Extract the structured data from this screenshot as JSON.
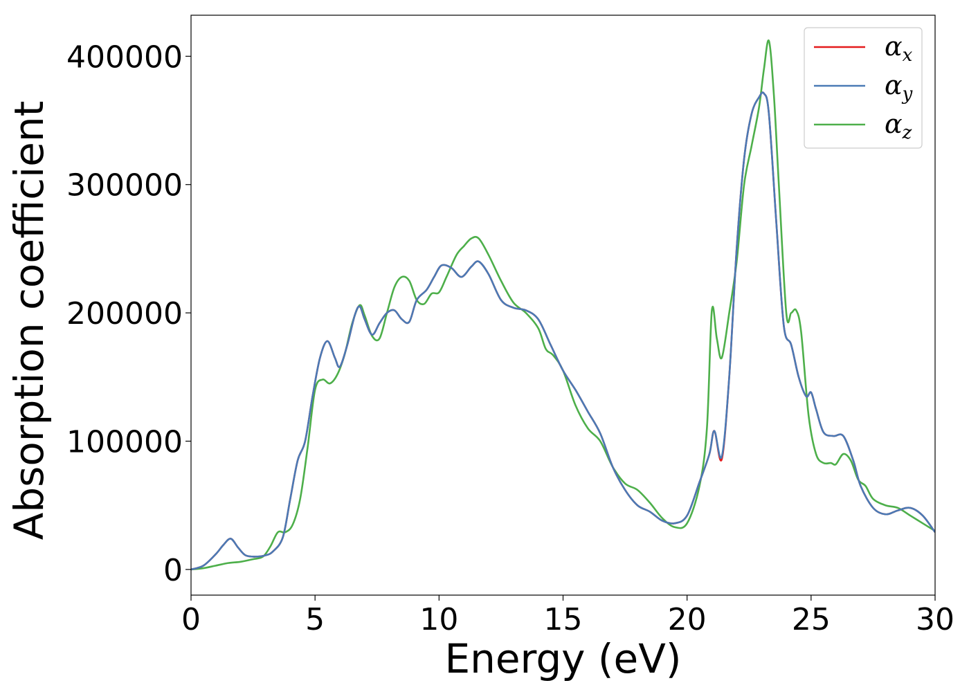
{
  "chart_data": {
    "type": "line",
    "title": "",
    "xlabel": "Energy (eV)",
    "ylabel": "Absorption coefficient",
    "xlim": [
      0,
      30
    ],
    "ylim": [
      -20000,
      432000
    ],
    "xticks": [
      0,
      5,
      10,
      15,
      20,
      25,
      30
    ],
    "xtick_labels": [
      "0",
      "5",
      "10",
      "15",
      "20",
      "25",
      "30"
    ],
    "yticks": [
      0,
      100000,
      200000,
      300000,
      400000
    ],
    "ytick_labels": [
      "0",
      "100000",
      "200000",
      "300000",
      "400000"
    ],
    "grid": false,
    "legend_position": "top-right",
    "series": [
      {
        "name": "αx",
        "label_base": "α",
        "label_sub": "x",
        "color": "#e41a1c",
        "x": [
          0,
          0.5,
          1.0,
          1.3,
          1.6,
          1.9,
          2.2,
          2.6,
          3.0,
          3.3,
          3.7,
          4.0,
          4.3,
          4.6,
          4.9,
          5.2,
          5.5,
          5.8,
          6.0,
          6.3,
          6.6,
          6.8,
          7.0,
          7.3,
          7.6,
          7.9,
          8.2,
          8.5,
          8.8,
          9.1,
          9.5,
          9.8,
          10.1,
          10.5,
          10.9,
          11.3,
          11.6,
          12.0,
          12.5,
          13.0,
          13.5,
          14.0,
          14.5,
          15.0,
          15.5,
          16.0,
          16.5,
          17.0,
          17.5,
          18.0,
          18.5,
          19.0,
          19.5,
          20.0,
          20.5,
          20.9,
          21.1,
          21.4,
          21.7,
          22.0,
          22.3,
          22.6,
          22.9,
          23.1,
          23.3,
          23.6,
          23.9,
          24.2,
          24.5,
          24.8,
          25.0,
          25.2,
          25.5,
          25.9,
          26.3,
          26.7,
          27.0,
          27.5,
          28.0,
          28.5,
          29.0,
          29.5,
          30.0
        ],
        "y": [
          0,
          3000,
          12000,
          19000,
          24000,
          17000,
          11000,
          10000,
          11000,
          14000,
          25000,
          55000,
          85000,
          100000,
          135000,
          165000,
          178000,
          165000,
          158000,
          175000,
          198000,
          205000,
          195000,
          183000,
          192000,
          200000,
          202000,
          195000,
          193000,
          210000,
          218000,
          228000,
          237000,
          235000,
          228000,
          236000,
          240000,
          230000,
          210000,
          204000,
          202000,
          195000,
          175000,
          155000,
          140000,
          123000,
          106000,
          80000,
          62000,
          50000,
          45000,
          38000,
          36000,
          42000,
          68000,
          90000,
          108000,
          86000,
          150000,
          250000,
          320000,
          355000,
          368000,
          371000,
          355000,
          270000,
          190000,
          175000,
          150000,
          135000,
          138000,
          125000,
          107000,
          104000,
          104000,
          85000,
          65000,
          48000,
          43000,
          46000,
          48000,
          42000,
          29000
        ]
      },
      {
        "name": "αy",
        "label_base": "α",
        "label_sub": "y",
        "color": "#4a7ab5",
        "x": [
          0,
          0.5,
          1.0,
          1.3,
          1.6,
          1.9,
          2.2,
          2.6,
          3.0,
          3.3,
          3.7,
          4.0,
          4.3,
          4.6,
          4.9,
          5.2,
          5.5,
          5.8,
          6.0,
          6.3,
          6.6,
          6.8,
          7.0,
          7.3,
          7.6,
          7.9,
          8.2,
          8.5,
          8.8,
          9.1,
          9.5,
          9.8,
          10.1,
          10.5,
          10.9,
          11.3,
          11.6,
          12.0,
          12.5,
          13.0,
          13.5,
          14.0,
          14.5,
          15.0,
          15.5,
          16.0,
          16.5,
          17.0,
          17.5,
          18.0,
          18.5,
          19.0,
          19.5,
          20.0,
          20.5,
          20.9,
          21.1,
          21.4,
          21.7,
          22.0,
          22.3,
          22.6,
          22.9,
          23.1,
          23.3,
          23.6,
          23.9,
          24.2,
          24.5,
          24.8,
          25.0,
          25.2,
          25.5,
          25.9,
          26.3,
          26.7,
          27.0,
          27.5,
          28.0,
          28.5,
          29.0,
          29.5,
          30.0
        ],
        "y": [
          0,
          3000,
          12000,
          19000,
          24000,
          17000,
          11000,
          10000,
          11000,
          14000,
          25000,
          55000,
          85000,
          100000,
          135000,
          165000,
          178000,
          165000,
          158000,
          175000,
          198000,
          205000,
          195000,
          183000,
          192000,
          200000,
          202000,
          195000,
          193000,
          210000,
          218000,
          228000,
          237000,
          235000,
          228000,
          236000,
          240000,
          230000,
          210000,
          204000,
          202000,
          195000,
          175000,
          155000,
          140000,
          123000,
          106000,
          80000,
          62000,
          50000,
          45000,
          38000,
          36000,
          42000,
          68000,
          90000,
          108000,
          88000,
          150000,
          250000,
          320000,
          355000,
          368000,
          371000,
          355000,
          270000,
          190000,
          175000,
          150000,
          135000,
          138000,
          125000,
          107000,
          104000,
          104000,
          85000,
          65000,
          48000,
          43000,
          46000,
          48000,
          42000,
          29000
        ]
      },
      {
        "name": "αz",
        "label_base": "α",
        "label_sub": "z",
        "color": "#4daf4a",
        "x": [
          0,
          0.5,
          1.0,
          1.5,
          2.0,
          2.5,
          2.9,
          3.2,
          3.5,
          3.8,
          4.1,
          4.4,
          4.7,
          5.0,
          5.3,
          5.6,
          5.9,
          6.2,
          6.5,
          6.8,
          7.0,
          7.3,
          7.6,
          7.9,
          8.2,
          8.5,
          8.8,
          9.1,
          9.4,
          9.7,
          10.0,
          10.3,
          10.7,
          11.0,
          11.3,
          11.6,
          12.0,
          12.5,
          13.0,
          13.5,
          14.0,
          14.3,
          14.6,
          15.0,
          15.5,
          16.0,
          16.5,
          17.0,
          17.5,
          18.0,
          18.5,
          19.0,
          19.5,
          20.0,
          20.5,
          20.8,
          21.0,
          21.2,
          21.4,
          21.7,
          22.0,
          22.3,
          22.6,
          22.9,
          23.1,
          23.3,
          23.5,
          23.7,
          24.0,
          24.2,
          24.4,
          24.6,
          24.9,
          25.2,
          25.5,
          25.8,
          26.0,
          26.3,
          26.6,
          26.9,
          27.2,
          27.5,
          28.0,
          28.5,
          29.0,
          29.5,
          30.0
        ],
        "y": [
          0,
          1000,
          3000,
          5000,
          6000,
          8000,
          10000,
          18000,
          29000,
          29000,
          35000,
          55000,
          95000,
          140000,
          148000,
          145000,
          152000,
          168000,
          192000,
          206000,
          198000,
          182000,
          180000,
          200000,
          220000,
          228000,
          225000,
          210000,
          207000,
          215000,
          216000,
          228000,
          245000,
          252000,
          258000,
          258000,
          245000,
          225000,
          208000,
          200000,
          188000,
          172000,
          167000,
          155000,
          128000,
          110000,
          100000,
          80000,
          67000,
          62000,
          52000,
          40000,
          33000,
          36000,
          65000,
          110000,
          202000,
          180000,
          165000,
          200000,
          240000,
          300000,
          330000,
          360000,
          390000,
          412000,
          370000,
          300000,
          200000,
          200000,
          202000,
          185000,
          120000,
          90000,
          83000,
          83000,
          82000,
          90000,
          85000,
          70000,
          65000,
          55000,
          50000,
          48000,
          42000,
          36000,
          30000
        ]
      }
    ]
  }
}
